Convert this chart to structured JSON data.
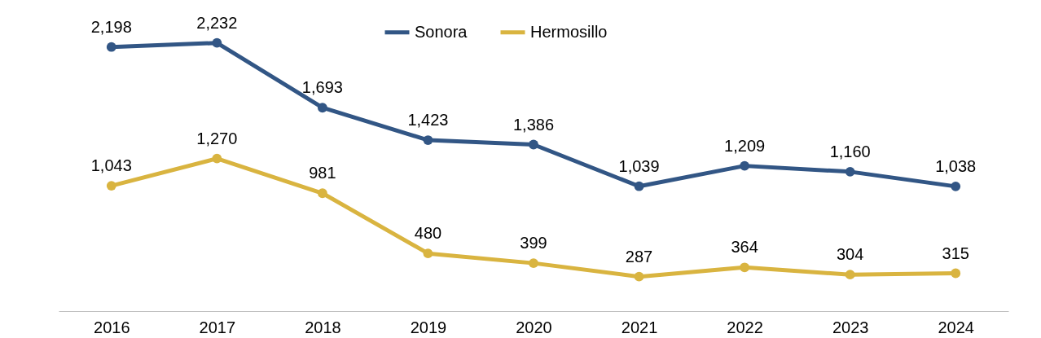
{
  "chart_data": {
    "type": "line",
    "categories": [
      "2016",
      "2017",
      "2018",
      "2019",
      "2020",
      "2021",
      "2022",
      "2023",
      "2024"
    ],
    "series": [
      {
        "name": "Sonora",
        "color": "#325685",
        "values": [
          2198,
          2232,
          1693,
          1423,
          1386,
          1039,
          1209,
          1160,
          1038
        ],
        "value_labels": [
          "2,198",
          "2,232",
          "1,693",
          "1,423",
          "1,386",
          "1,039",
          "1,209",
          "1,160",
          "1,038"
        ]
      },
      {
        "name": "Hermosillo",
        "color": "#d9b440",
        "values": [
          1043,
          1270,
          981,
          480,
          399,
          287,
          364,
          304,
          315
        ],
        "value_labels": [
          "1,043",
          "1,270",
          "981",
          "480",
          "399",
          "287",
          "364",
          "304",
          "315"
        ]
      }
    ],
    "legend": "top",
    "marker": "circle",
    "line_style": "solid",
    "grid": false
  }
}
